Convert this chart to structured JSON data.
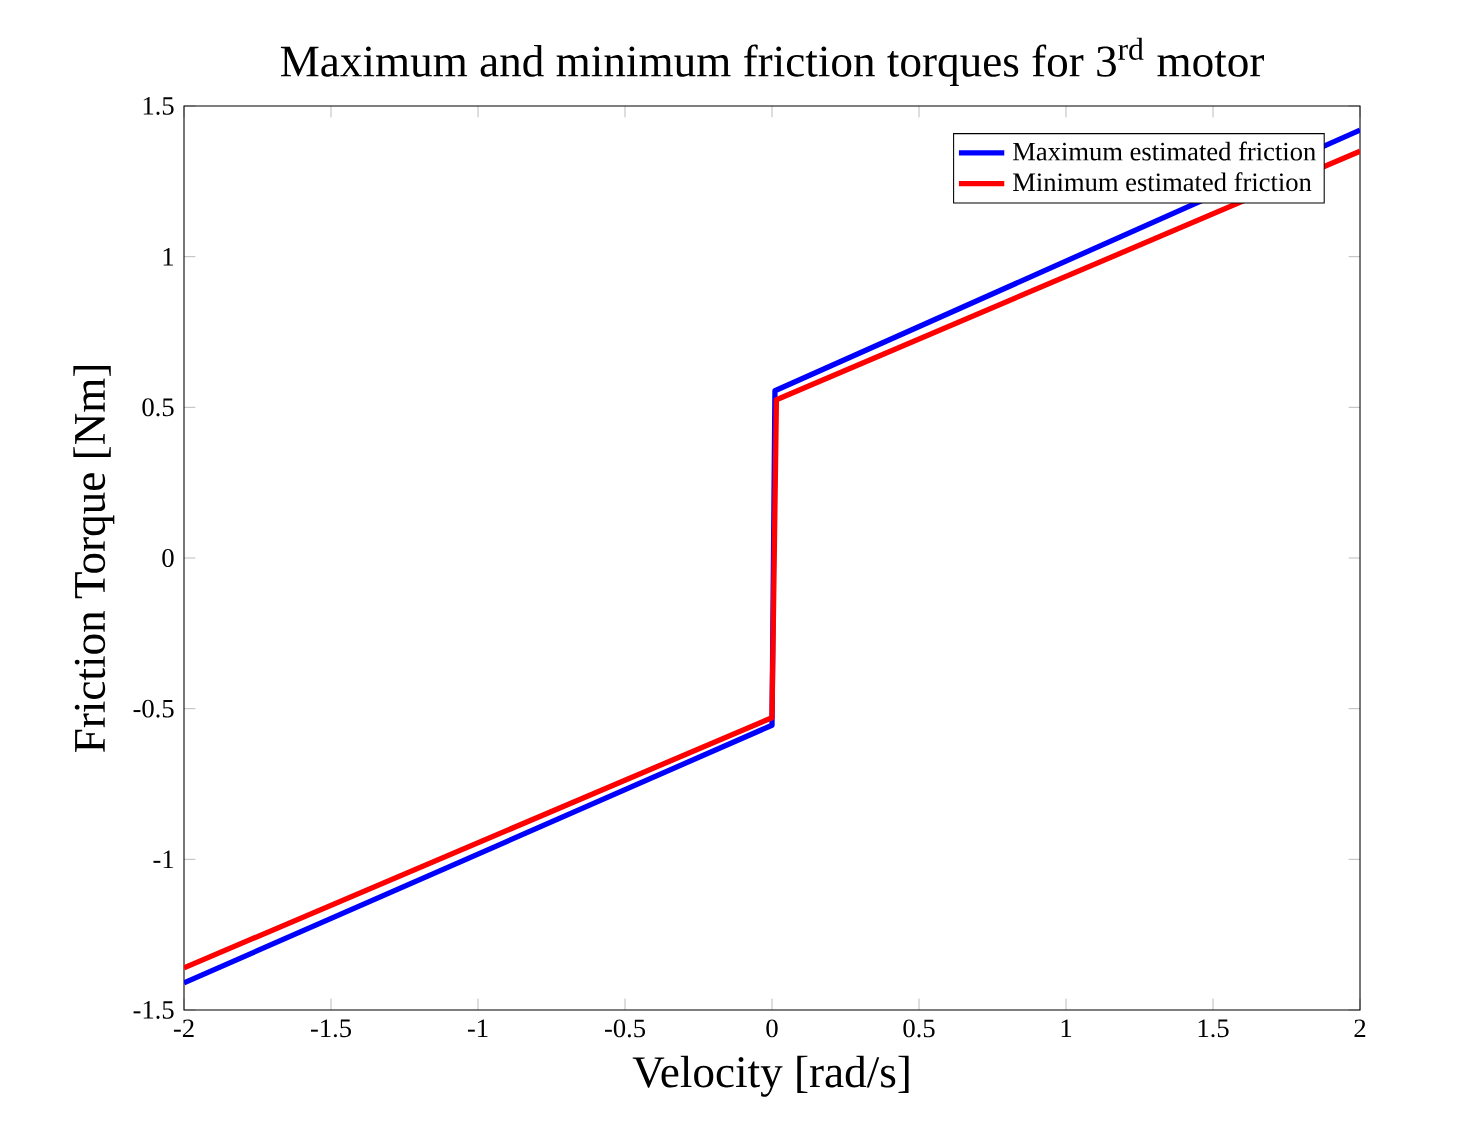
{
  "chart_data": {
    "type": "line",
    "title": "Maximum and minimum friction torques for 3$^{rd}$ motor",
    "xlabel": "Velocity [rad/s]",
    "ylabel": "Friction Torque [Nm]",
    "series": [
      {
        "name": "Maximum estimated friction",
        "color": "#0000ff",
        "x": [
          -2,
          0,
          0.01,
          2
        ],
        "values": [
          -1.41,
          -0.555,
          0.555,
          1.42
        ]
      },
      {
        "name": "Minimum estimated friction",
        "color": "#ff0000",
        "x": [
          -2,
          0,
          0.015,
          2
        ],
        "values": [
          -1.36,
          -0.53,
          0.525,
          1.35
        ]
      }
    ],
    "xlim": [
      -2,
      2
    ],
    "ylim": [
      -1.5,
      1.5
    ],
    "xticks": [
      -2,
      -1.5,
      -1,
      -0.5,
      0,
      0.5,
      1,
      1.5,
      2
    ],
    "yticks": [
      -1.5,
      -1,
      -0.5,
      0,
      0.5,
      1,
      1.5
    ],
    "grid": false,
    "legend": "top right",
    "line_style": "solid",
    "marker": "none"
  }
}
